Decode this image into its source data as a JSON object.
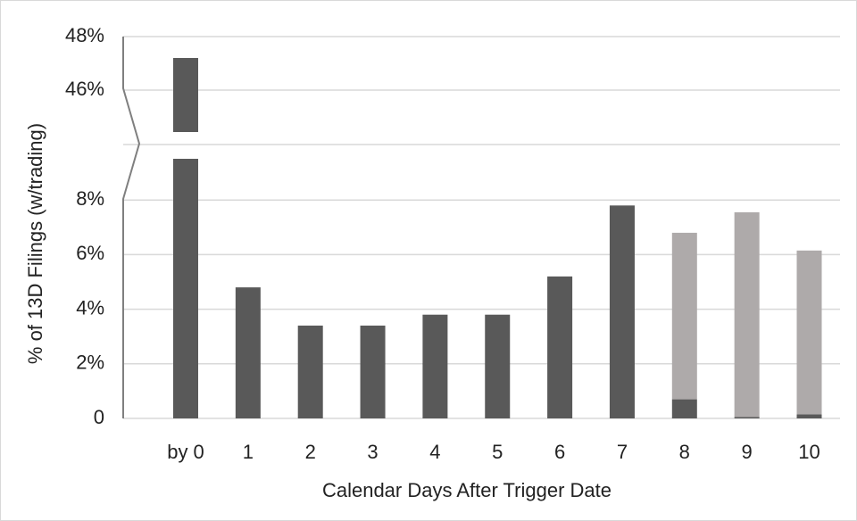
{
  "chart_data": {
    "type": "bar",
    "stacked": true,
    "xlabel": "Calendar Days After Trigger Date",
    "ylabel": "% of 13D Filings (w/trading)",
    "categories": [
      "by 0",
      "1",
      "2",
      "3",
      "4",
      "5",
      "6",
      "7",
      "8",
      "9",
      "10"
    ],
    "series": [
      {
        "color": "#595959",
        "values": [
          47.2,
          4.8,
          3.4,
          3.4,
          3.8,
          3.8,
          5.2,
          7.8,
          0.7,
          0.05,
          0.15
        ]
      },
      {
        "color": "#aeaaaa",
        "values": [
          0,
          0,
          0,
          0,
          0,
          0,
          0,
          0,
          6.1,
          7.5,
          6.0
        ]
      }
    ],
    "axis_break": {
      "from": 8,
      "to": 46
    },
    "y_ticks": [
      {
        "value": 0,
        "label": "0"
      },
      {
        "value": 2,
        "label": "2%"
      },
      {
        "value": 4,
        "label": "4%"
      },
      {
        "value": 6,
        "label": "6%"
      },
      {
        "value": 8,
        "label": "8%"
      },
      {
        "value": 46,
        "label": "46%"
      },
      {
        "value": 48,
        "label": "48%"
      }
    ],
    "ylim": [
      0,
      48
    ],
    "grid": true
  }
}
